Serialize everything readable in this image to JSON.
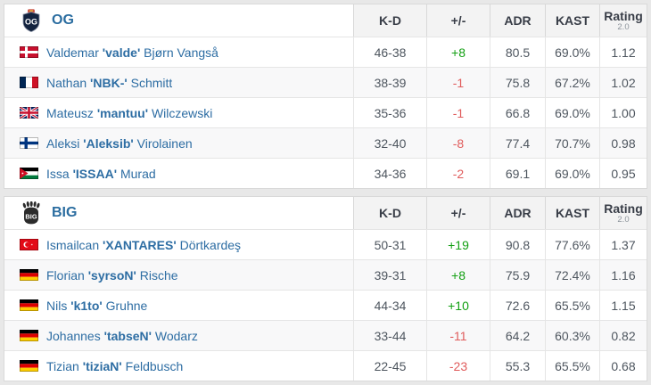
{
  "columns": {
    "kd": "K-D",
    "plusminus": "+/-",
    "adr": "ADR",
    "kast": "KAST",
    "rating": "Rating",
    "rating_version": "2.0"
  },
  "colors": {
    "link_blue": "#2d6da3",
    "positive_green": "#14a014",
    "negative_red": "#e05c5c",
    "header_bg": "#f3f3f3",
    "page_bg": "#e8e8e8"
  },
  "teams": [
    {
      "name": "OG",
      "logo": "og",
      "players": [
        {
          "first": "Valdemar",
          "nick": "valde",
          "last": "Bjørn Vangså",
          "flag": "dk",
          "flag_name": "denmark",
          "kd": "46-38",
          "diff": "+8",
          "adr": "80.5",
          "kast": "69.0%",
          "rating": "1.12"
        },
        {
          "first": "Nathan",
          "nick": "NBK-",
          "last": "Schmitt",
          "flag": "fr",
          "flag_name": "france",
          "kd": "38-39",
          "diff": "-1",
          "adr": "75.8",
          "kast": "67.2%",
          "rating": "1.02"
        },
        {
          "first": "Mateusz",
          "nick": "mantuu",
          "last": "Wilczewski",
          "flag": "gb",
          "flag_name": "united-kingdom",
          "kd": "35-36",
          "diff": "-1",
          "adr": "66.8",
          "kast": "69.0%",
          "rating": "1.00"
        },
        {
          "first": "Aleksi",
          "nick": "Aleksib",
          "last": "Virolainen",
          "flag": "fi",
          "flag_name": "finland",
          "kd": "32-40",
          "diff": "-8",
          "adr": "77.4",
          "kast": "70.7%",
          "rating": "0.98"
        },
        {
          "first": "Issa",
          "nick": "ISSAA",
          "last": "Murad",
          "flag": "jo",
          "flag_name": "jordan",
          "kd": "34-36",
          "diff": "-2",
          "adr": "69.1",
          "kast": "69.0%",
          "rating": "0.95"
        }
      ]
    },
    {
      "name": "BIG",
      "logo": "big",
      "players": [
        {
          "first": "Ismailcan",
          "nick": "XANTARES",
          "last": "Dörtkardeş",
          "flag": "tr",
          "flag_name": "turkey",
          "kd": "50-31",
          "diff": "+19",
          "adr": "90.8",
          "kast": "77.6%",
          "rating": "1.37"
        },
        {
          "first": "Florian",
          "nick": "syrsoN",
          "last": "Rische",
          "flag": "de",
          "flag_name": "germany",
          "kd": "39-31",
          "diff": "+8",
          "adr": "75.9",
          "kast": "72.4%",
          "rating": "1.16"
        },
        {
          "first": "Nils",
          "nick": "k1to",
          "last": "Gruhne",
          "flag": "de",
          "flag_name": "germany",
          "kd": "44-34",
          "diff": "+10",
          "adr": "72.6",
          "kast": "65.5%",
          "rating": "1.15"
        },
        {
          "first": "Johannes",
          "nick": "tabseN",
          "last": "Wodarz",
          "flag": "de",
          "flag_name": "germany",
          "kd": "33-44",
          "diff": "-11",
          "adr": "64.2",
          "kast": "60.3%",
          "rating": "0.82"
        },
        {
          "first": "Tizian",
          "nick": "tiziaN",
          "last": "Feldbusch",
          "flag": "de",
          "flag_name": "germany",
          "kd": "22-45",
          "diff": "-23",
          "adr": "55.3",
          "kast": "65.5%",
          "rating": "0.68"
        }
      ]
    }
  ]
}
